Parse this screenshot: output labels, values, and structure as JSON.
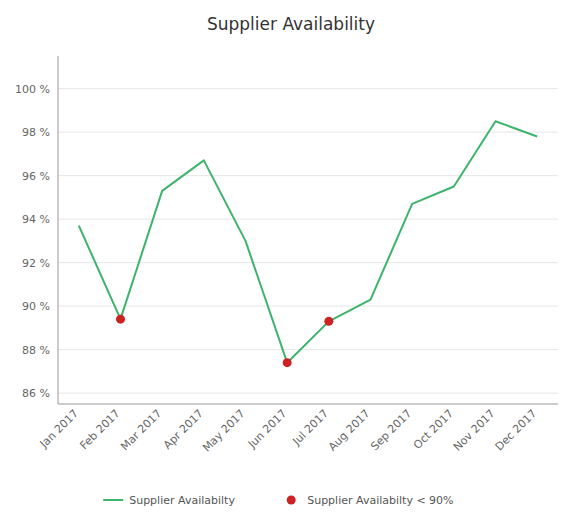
{
  "chart_data": {
    "type": "line",
    "title": "Supplier Availability",
    "categories": [
      "Jan 2017",
      "Feb 2017",
      "Mar 2017",
      "Apr 2017",
      "May 2017",
      "Jun 2017",
      "Jul 2017",
      "Aug 2017",
      "Sep 2017",
      "Oct 2017",
      "Nov 2017",
      "Dec 2017"
    ],
    "series": [
      {
        "name": "Supplier Availabilty",
        "type": "line",
        "color": "#3db36b",
        "values": [
          93.7,
          89.4,
          95.3,
          96.7,
          93.0,
          87.4,
          89.3,
          90.3,
          94.7,
          95.5,
          98.5,
          97.8
        ]
      },
      {
        "name": "Supplier Availabilty < 90%",
        "type": "scatter",
        "marker": "circle",
        "color": "#cc2222",
        "values": [
          null,
          89.4,
          null,
          null,
          null,
          87.4,
          89.3,
          null,
          null,
          null,
          null,
          null
        ]
      }
    ],
    "ylim": [
      85.5,
      101.5
    ],
    "yticks": [
      {
        "value": 86,
        "label": "86 %"
      },
      {
        "value": 88,
        "label": "88 %"
      },
      {
        "value": 90,
        "label": "90 %"
      },
      {
        "value": 92,
        "label": "92 %"
      },
      {
        "value": 94,
        "label": "94 %"
      },
      {
        "value": 96,
        "label": "96 %"
      },
      {
        "value": 98,
        "label": "98 %"
      },
      {
        "value": 100,
        "label": "100 %"
      }
    ],
    "grid": true,
    "legend": "bottom"
  }
}
